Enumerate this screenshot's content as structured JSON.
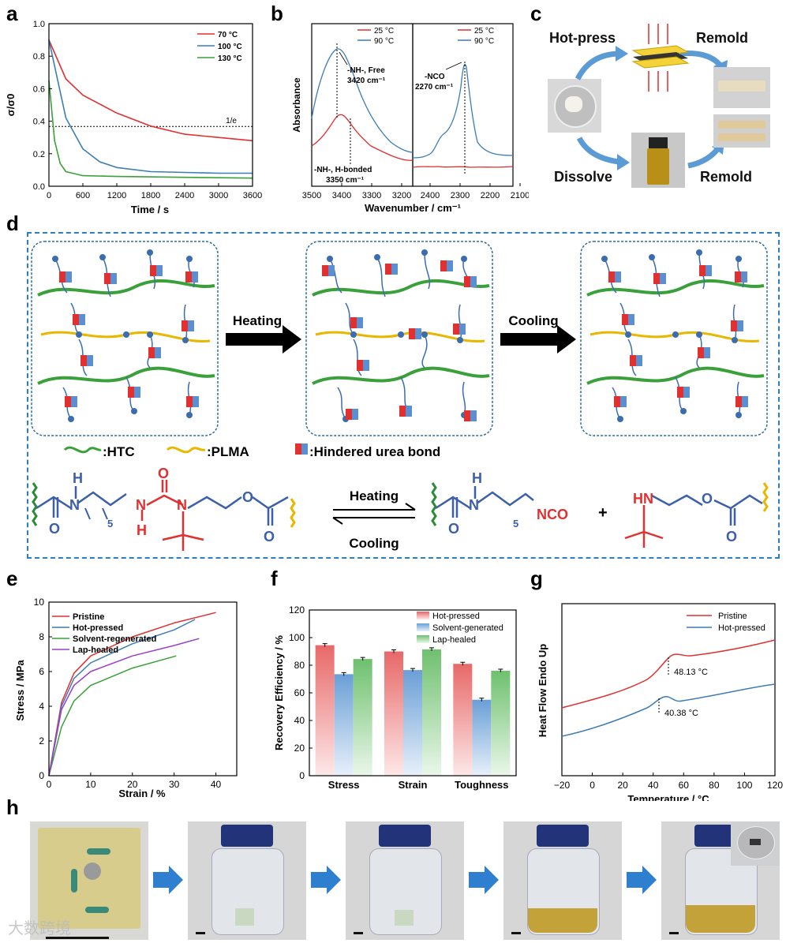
{
  "panels": {
    "a": "a",
    "b": "b",
    "c": "c",
    "d": "d",
    "e": "e",
    "f": "f",
    "g": "g",
    "h": "h"
  },
  "colors": {
    "red": "#e03030",
    "blue": "#3d7db3",
    "green": "#3aa03a",
    "yellow": "#e8b800",
    "darkgreen": "#2e8b3a",
    "navy": "#3b5fa8",
    "dash": "#2a7fc0"
  },
  "panel_a": {
    "chart_data": {
      "type": "line",
      "xlabel": "Time / s",
      "ylabel": "σ/σ0",
      "xlim": [
        0,
        3600
      ],
      "ylim": [
        0,
        1.0
      ],
      "xticks": [
        "0",
        "600",
        "1200",
        "1800",
        "2400",
        "3000",
        "3600"
      ],
      "yticks": [
        "0.0",
        "0.2",
        "0.4",
        "0.6",
        "0.8",
        "1.0"
      ],
      "reference": {
        "y": 0.368,
        "label": "1/e"
      },
      "series": [
        {
          "name": "70 °C",
          "x": [
            0,
            300,
            600,
            1200,
            1800,
            2400,
            3000,
            3600
          ],
          "y": [
            0.9,
            0.66,
            0.56,
            0.45,
            0.37,
            0.32,
            0.3,
            0.28
          ]
        },
        {
          "name": "100 °C",
          "x": [
            0,
            300,
            600,
            900,
            1200,
            1800,
            2400,
            3000,
            3600
          ],
          "y": [
            0.9,
            0.42,
            0.23,
            0.15,
            0.115,
            0.09,
            0.085,
            0.08,
            0.08
          ]
        },
        {
          "name": "130 °C",
          "x": [
            0,
            100,
            200,
            300,
            600,
            1200,
            2400,
            3600
          ],
          "y": [
            0.65,
            0.28,
            0.14,
            0.09,
            0.065,
            0.06,
            0.055,
            0.05
          ]
        }
      ]
    }
  },
  "panel_b": {
    "ylabel": "Absorbance",
    "xlabel": "Wavenumber / cm⁻¹",
    "xticks_left": [
      "3500",
      "3400",
      "3300",
      "3200"
    ],
    "xticks_right": [
      "2400",
      "2300",
      "2200",
      "2100"
    ],
    "legend_left": [
      "25 °C",
      "90 °C"
    ],
    "legend_right": [
      "25 °C",
      "90 °C"
    ],
    "ann_free": "-NH-, Free",
    "ann_free_val": "3420 cm⁻¹",
    "ann_hb": "-NH-, H-bonded",
    "ann_hb_val": "3350 cm⁻¹",
    "ann_nco": "-NCO",
    "ann_nco_val": "2270 cm⁻¹"
  },
  "panel_c": {
    "hot_press": "Hot-press",
    "remold1": "Remold",
    "dissolve": "Dissolve",
    "remold2": "Remold"
  },
  "panel_d": {
    "heating": "Heating",
    "cooling": "Cooling",
    "legend_htc": ":HTC",
    "legend_plma": ":PLMA",
    "legend_bond": ":Hindered urea bond",
    "eq_heating": "Heating",
    "eq_cooling": "Cooling",
    "plus": "+",
    "atoms": {
      "H": "H",
      "N": "N",
      "O": "O",
      "NCO": "NCO",
      "HN": "HN",
      "sub5": "5"
    }
  },
  "panel_e": {
    "chart_data": {
      "type": "line",
      "xlabel": "Strain / %",
      "ylabel": "Stress / MPa",
      "xlim": [
        0,
        45
      ],
      "ylim": [
        0,
        10
      ],
      "xticks": [
        "0",
        "10",
        "20",
        "30",
        "40"
      ],
      "yticks": [
        "0",
        "2",
        "4",
        "6",
        "8",
        "10"
      ],
      "series": [
        {
          "name": "Pristine",
          "x": [
            0,
            3,
            6,
            10,
            20,
            30,
            40
          ],
          "y": [
            0,
            4.2,
            5.9,
            6.9,
            8.0,
            8.8,
            9.4
          ]
        },
        {
          "name": "Hot-pressed",
          "x": [
            0,
            3,
            6,
            10,
            20,
            30,
            35
          ],
          "y": [
            0,
            4.0,
            5.6,
            6.5,
            7.6,
            8.4,
            9.0
          ]
        },
        {
          "name": "Solvent-regenerated",
          "x": [
            0,
            3,
            6,
            10,
            20,
            30.5
          ],
          "y": [
            0,
            2.8,
            4.3,
            5.2,
            6.2,
            6.9
          ]
        },
        {
          "name": "Lap-healed",
          "x": [
            0,
            3,
            6,
            10,
            20,
            30,
            36
          ],
          "y": [
            0,
            3.8,
            5.2,
            6.0,
            6.9,
            7.5,
            7.9
          ]
        }
      ]
    }
  },
  "panel_f": {
    "chart_data": {
      "type": "bar",
      "ylabel": "Recovery Efficiency / %",
      "ylim": [
        0,
        120
      ],
      "yticks": [
        "0",
        "20",
        "40",
        "60",
        "80",
        "100",
        "120"
      ],
      "categories": [
        "Stress",
        "Strain",
        "Toughness"
      ],
      "series": [
        {
          "name": "Hot-pressed",
          "values": [
            94.5,
            90,
            81
          ]
        },
        {
          "name": "Solvent-generated",
          "values": [
            73.5,
            76.5,
            55
          ]
        },
        {
          "name": "Lap-healed",
          "values": [
            84.5,
            91.5,
            76
          ]
        }
      ]
    }
  },
  "panel_g": {
    "chart_data": {
      "type": "line",
      "xlabel": "Temperature / °C",
      "ylabel": "Heat Flow Endo Up",
      "xlim": [
        -20,
        120
      ],
      "xticks": [
        "−20",
        "0",
        "20",
        "40",
        "60",
        "80",
        "100",
        "120"
      ],
      "series": [
        {
          "name": "Pristine",
          "tg_label": "48.13 °C"
        },
        {
          "name": "Hot-pressed",
          "tg_label": "40.38 °C"
        }
      ]
    }
  },
  "watermark": "大数跨境"
}
